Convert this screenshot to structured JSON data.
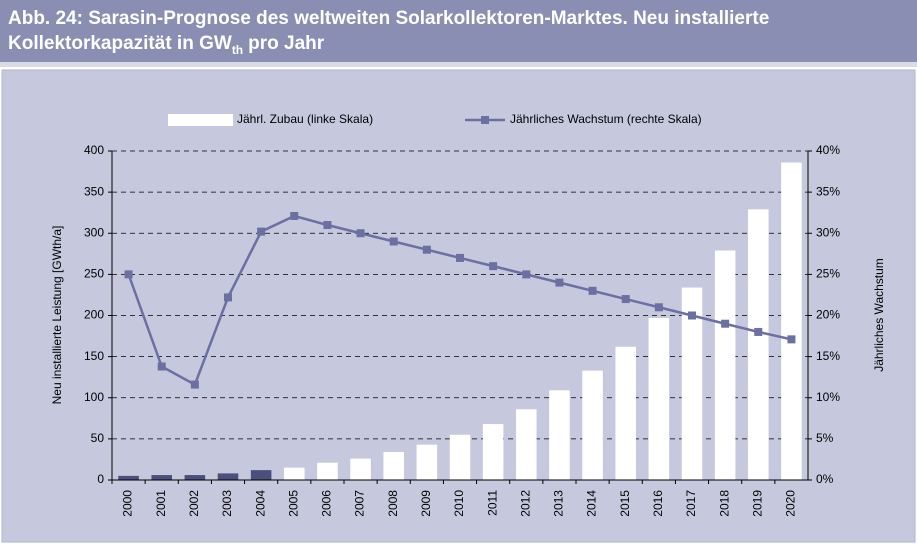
{
  "chart_data": {
    "type": "bar-line",
    "title": "Abb. 24: Sarasin-Prognose des weltweiten Solarkollektoren-Marktes. Neu installierte Kollektorkapazität in GW",
    "title_subscript": "th",
    "title_suffix": "pro Jahr",
    "y_label": "Neu installierte Leistung [GWth/a]",
    "y2_label": "Jährliches Wachstum",
    "categories": [
      "2000",
      "2001",
      "2002",
      "2003",
      "2004",
      "2005",
      "2006",
      "2007",
      "2008",
      "2009",
      "2010",
      "2011",
      "2012",
      "2013",
      "2014",
      "2015",
      "2016",
      "2017",
      "2018",
      "2019",
      "2020"
    ],
    "series": [
      {
        "name": "Jährl. Zubau (linke Skala)",
        "type": "bar",
        "axis": "y",
        "colors": [
          "#4b4f7c",
          "#4b4f7c",
          "#4b4f7c",
          "#4b4f7c",
          "#4b4f7c",
          "#ffffff",
          "#ffffff",
          "#ffffff",
          "#ffffff",
          "#ffffff",
          "#ffffff",
          "#ffffff",
          "#ffffff",
          "#ffffff",
          "#ffffff",
          "#ffffff",
          "#ffffff",
          "#ffffff",
          "#ffffff",
          "#ffffff",
          "#ffffff"
        ],
        "color": "#ffffff",
        "values": [
          5,
          6,
          6,
          8,
          12,
          15,
          21,
          26,
          34,
          43,
          55,
          68,
          86,
          109,
          133,
          162,
          197,
          234,
          279,
          329,
          386
        ]
      },
      {
        "name": "Jährliches Wachstum (rechte Skala)",
        "type": "line",
        "axis": "y2",
        "color": "#6b6fa2",
        "values": [
          25,
          13.8,
          11.6,
          22.2,
          30.2,
          32.1,
          31,
          30,
          29,
          28,
          27,
          26,
          25,
          24,
          23,
          22,
          21,
          20,
          19,
          18,
          17.1
        ]
      }
    ],
    "ylim": [
      0,
      400
    ],
    "yticks": [
      0,
      50,
      100,
      150,
      200,
      250,
      300,
      350,
      400
    ],
    "y2lim": [
      0,
      40
    ],
    "y2ticks": [
      {
        "value": 0,
        "label": "0%"
      },
      {
        "value": 5,
        "label": "5%"
      },
      {
        "value": 10,
        "label": "10%"
      },
      {
        "value": 15,
        "label": "15%"
      },
      {
        "value": 20,
        "label": "20%"
      },
      {
        "value": 25,
        "label": "25%"
      },
      {
        "value": 30,
        "label": "30%"
      },
      {
        "value": 35,
        "label": "35%"
      },
      {
        "value": 40,
        "label": "40%"
      }
    ],
    "grid": true
  }
}
